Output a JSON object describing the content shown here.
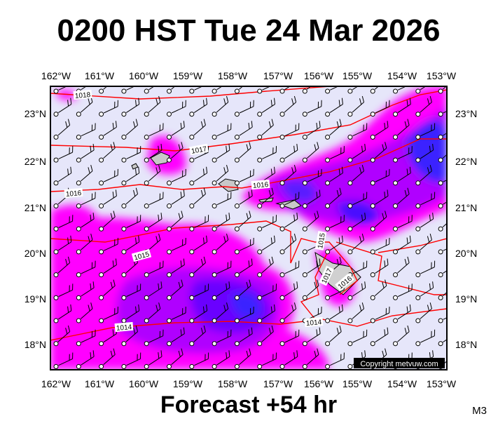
{
  "header": {
    "title": "0200 HST Tue 24 Mar 2026"
  },
  "map": {
    "lon_labels": [
      "162°W",
      "161°W",
      "160°W",
      "159°W",
      "158°W",
      "157°W",
      "156°W",
      "155°W",
      "154°W",
      "153°W"
    ],
    "lat_labels": [
      "23°N",
      "22°N",
      "21°N",
      "20°N",
      "19°N",
      "18°N"
    ],
    "isobar_labels": [
      "1018",
      "1017",
      "1016",
      "1016",
      "1015",
      "1015",
      "1017",
      "1016",
      "1014",
      "1014"
    ],
    "copyright": "Copyright metvuw.com"
  },
  "footer": {
    "forecast": "Forecast +54 hr",
    "code": "M3"
  }
}
